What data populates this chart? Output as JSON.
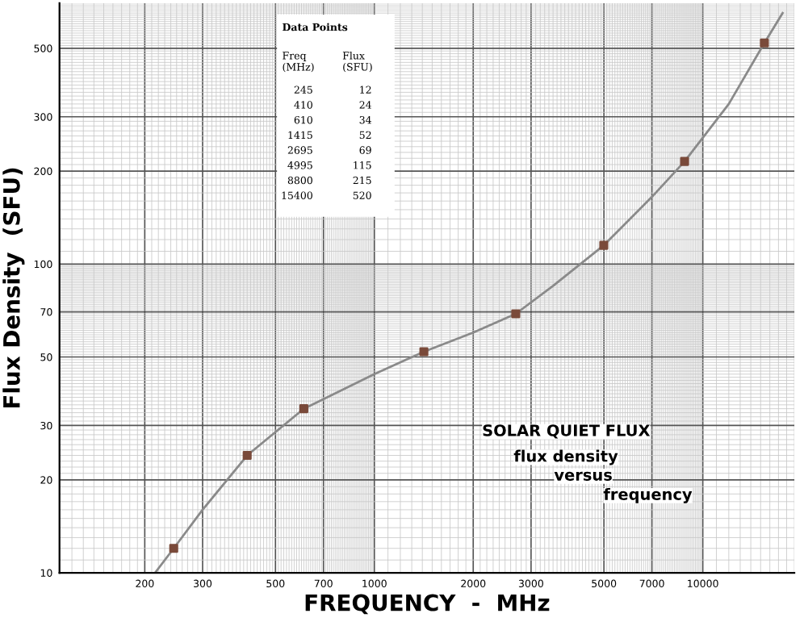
{
  "chart_data": {
    "type": "line",
    "xlabel": "FREQUENCY  -  MHz",
    "ylabel": "Flux Density  (SFU)",
    "log": "xy",
    "xlim": [
      110,
      19000
    ],
    "ylim": [
      10,
      700
    ],
    "xticks": [
      200,
      300,
      500,
      700,
      1000,
      2000,
      3000,
      5000,
      7000,
      10000
    ],
    "yticks": [
      10,
      20,
      30,
      50,
      70,
      100,
      200,
      300,
      500
    ],
    "grid": true,
    "annotations": [
      "Data Points",
      "Freq\n(MHz)",
      "Flux\n(SFU)",
      "245",
      "12",
      "410",
      "24",
      "610",
      "34",
      "1415",
      "52",
      "2695",
      "69",
      "4995",
      "115",
      "8800",
      "215",
      "15400",
      "520",
      "SOLAR QUIET FLUX",
      "flux density",
      "versus",
      "frequency"
    ],
    "series": [
      {
        "color": "#8a8a8a",
        "marker": "none",
        "x": [
          215,
          245,
          300,
          410,
          610,
          1000,
          1415,
          2000,
          2695,
          3500,
          4995,
          7000,
          8800,
          12000,
          15400,
          17500
        ],
        "values": [
          10,
          12,
          16,
          24,
          34,
          44,
          52,
          60,
          69,
          85,
          115,
          165,
          215,
          330,
          520,
          650
        ]
      },
      {
        "type": "scatter",
        "color": "#7a4a3a",
        "marker": "square",
        "x": [
          245,
          410,
          610,
          1415,
          2695,
          4995,
          8800,
          15400
        ],
        "values": [
          12,
          24,
          34,
          52,
          69,
          115,
          215,
          520
        ]
      }
    ]
  }
}
